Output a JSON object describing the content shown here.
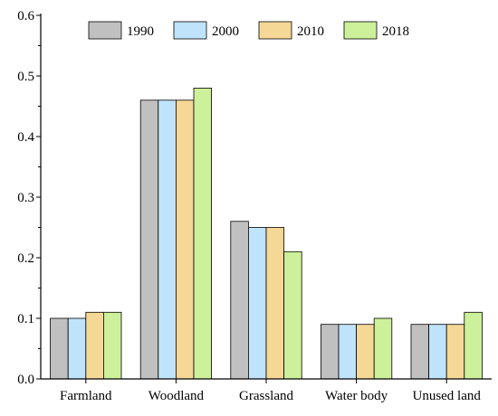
{
  "chart_data": {
    "type": "bar",
    "categories": [
      "Farmland",
      "Woodland",
      "Grassland",
      "Water body",
      "Unused land"
    ],
    "series": [
      {
        "name": "1990",
        "color": "#c0c0c0",
        "values": [
          0.1,
          0.46,
          0.26,
          0.09,
          0.09
        ]
      },
      {
        "name": "2000",
        "color": "#bfe3fb",
        "values": [
          0.1,
          0.46,
          0.25,
          0.09,
          0.09
        ]
      },
      {
        "name": "2010",
        "color": "#f5d796",
        "values": [
          0.11,
          0.46,
          0.25,
          0.09,
          0.09
        ]
      },
      {
        "name": "2018",
        "color": "#cdf09a",
        "values": [
          0.11,
          0.48,
          0.21,
          0.1,
          0.11
        ]
      }
    ],
    "y_ticks": [
      "0.0",
      "0.1",
      "0.2",
      "0.3",
      "0.4",
      "0.5",
      "0.6"
    ],
    "ylim": [
      0,
      0.6
    ],
    "title": "",
    "xlabel": "",
    "ylabel": "",
    "grid": false,
    "legend_position": "top-center"
  }
}
